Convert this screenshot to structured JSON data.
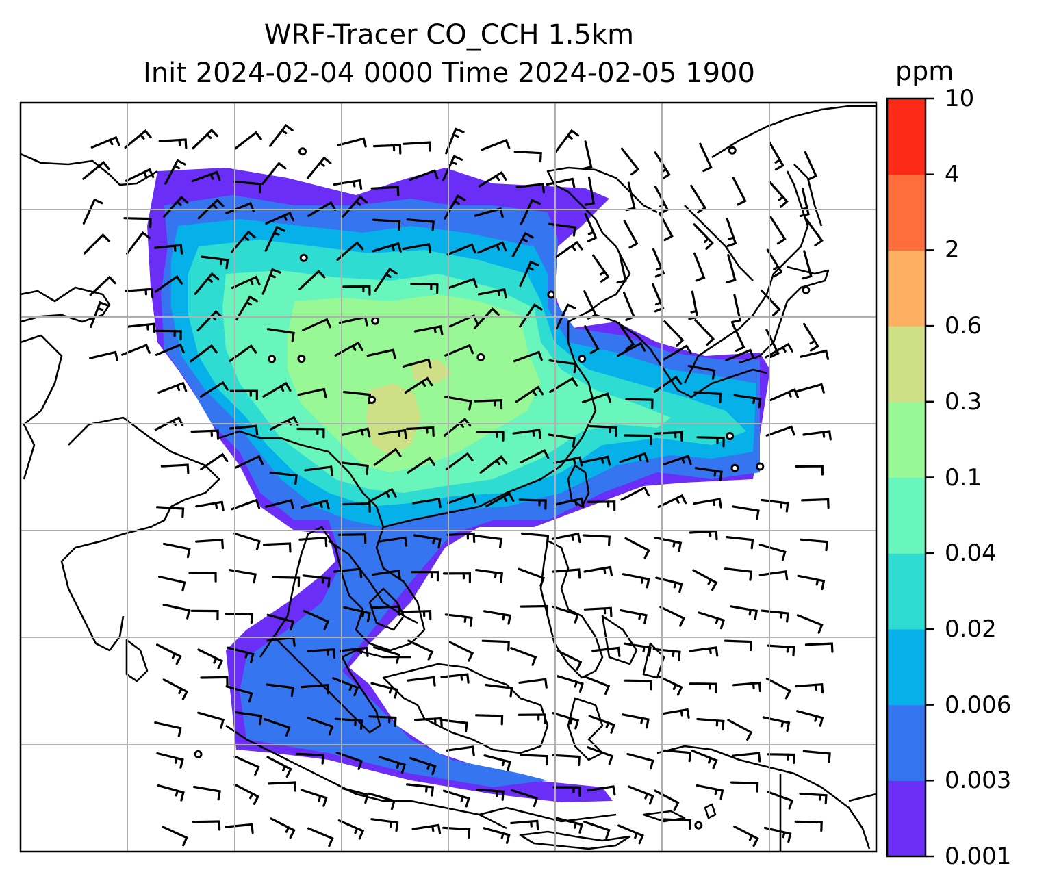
{
  "figure": {
    "title_line_1": "WRF-Tracer CO_CCH 1.5km",
    "title_line_2": "Init 2024-02-04 0000 Time 2024-02-05 1900"
  },
  "colorbar": {
    "unit": "ppm",
    "ticks": [
      "0.001",
      "0.003",
      "0.006",
      "0.02",
      "0.04",
      "0.1",
      "0.3",
      "0.6",
      "2",
      "4",
      "10"
    ],
    "colors": [
      "#6a2ef6",
      "#3576f0",
      "#05b1e8",
      "#2fdcd2",
      "#68f6bd",
      "#98f896",
      "#cfdf85",
      "#feb062",
      "#fe6d3b",
      "#fe2a18"
    ]
  },
  "map": {
    "gridlines": true,
    "coastlines": true,
    "wind_barbs": true,
    "background": "#ffffff"
  }
}
